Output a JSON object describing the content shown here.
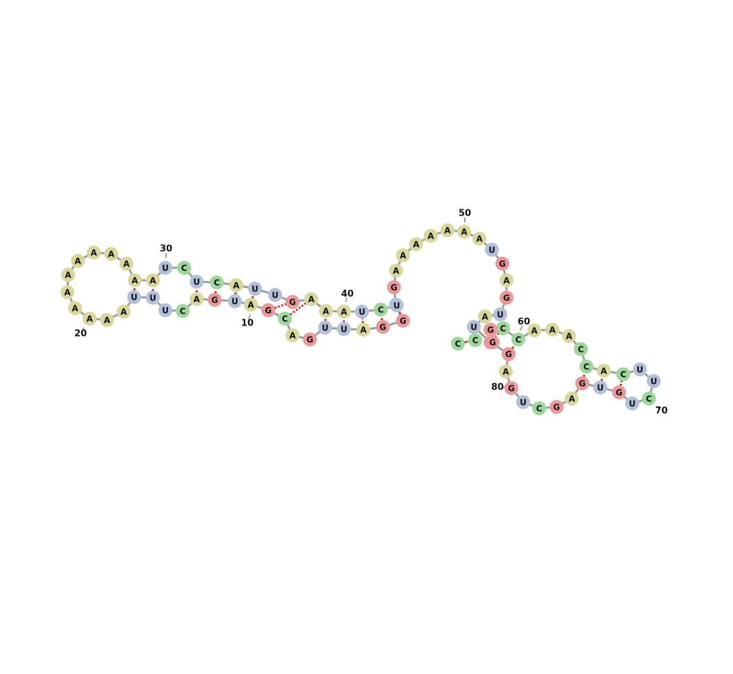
{
  "colors": {
    "A": "#d8d89c",
    "U": "#b3c0da",
    "G": "#eb9898",
    "C": "#9ed79b",
    "backbone": "#9e9e9e",
    "pair": "#d62020"
  },
  "sequence": "CCUGCAUUAGCAGGGUCUGUAAAAAAAAUUCUCCAUUGAAAAUCGGAAAAAAAUGAGUACCAACCAGCUUCUUGACGGCUGAGGAG",
  "numbers": [
    "10",
    "20",
    "30",
    "40",
    "50",
    "60",
    "70",
    "80"
  ]
}
